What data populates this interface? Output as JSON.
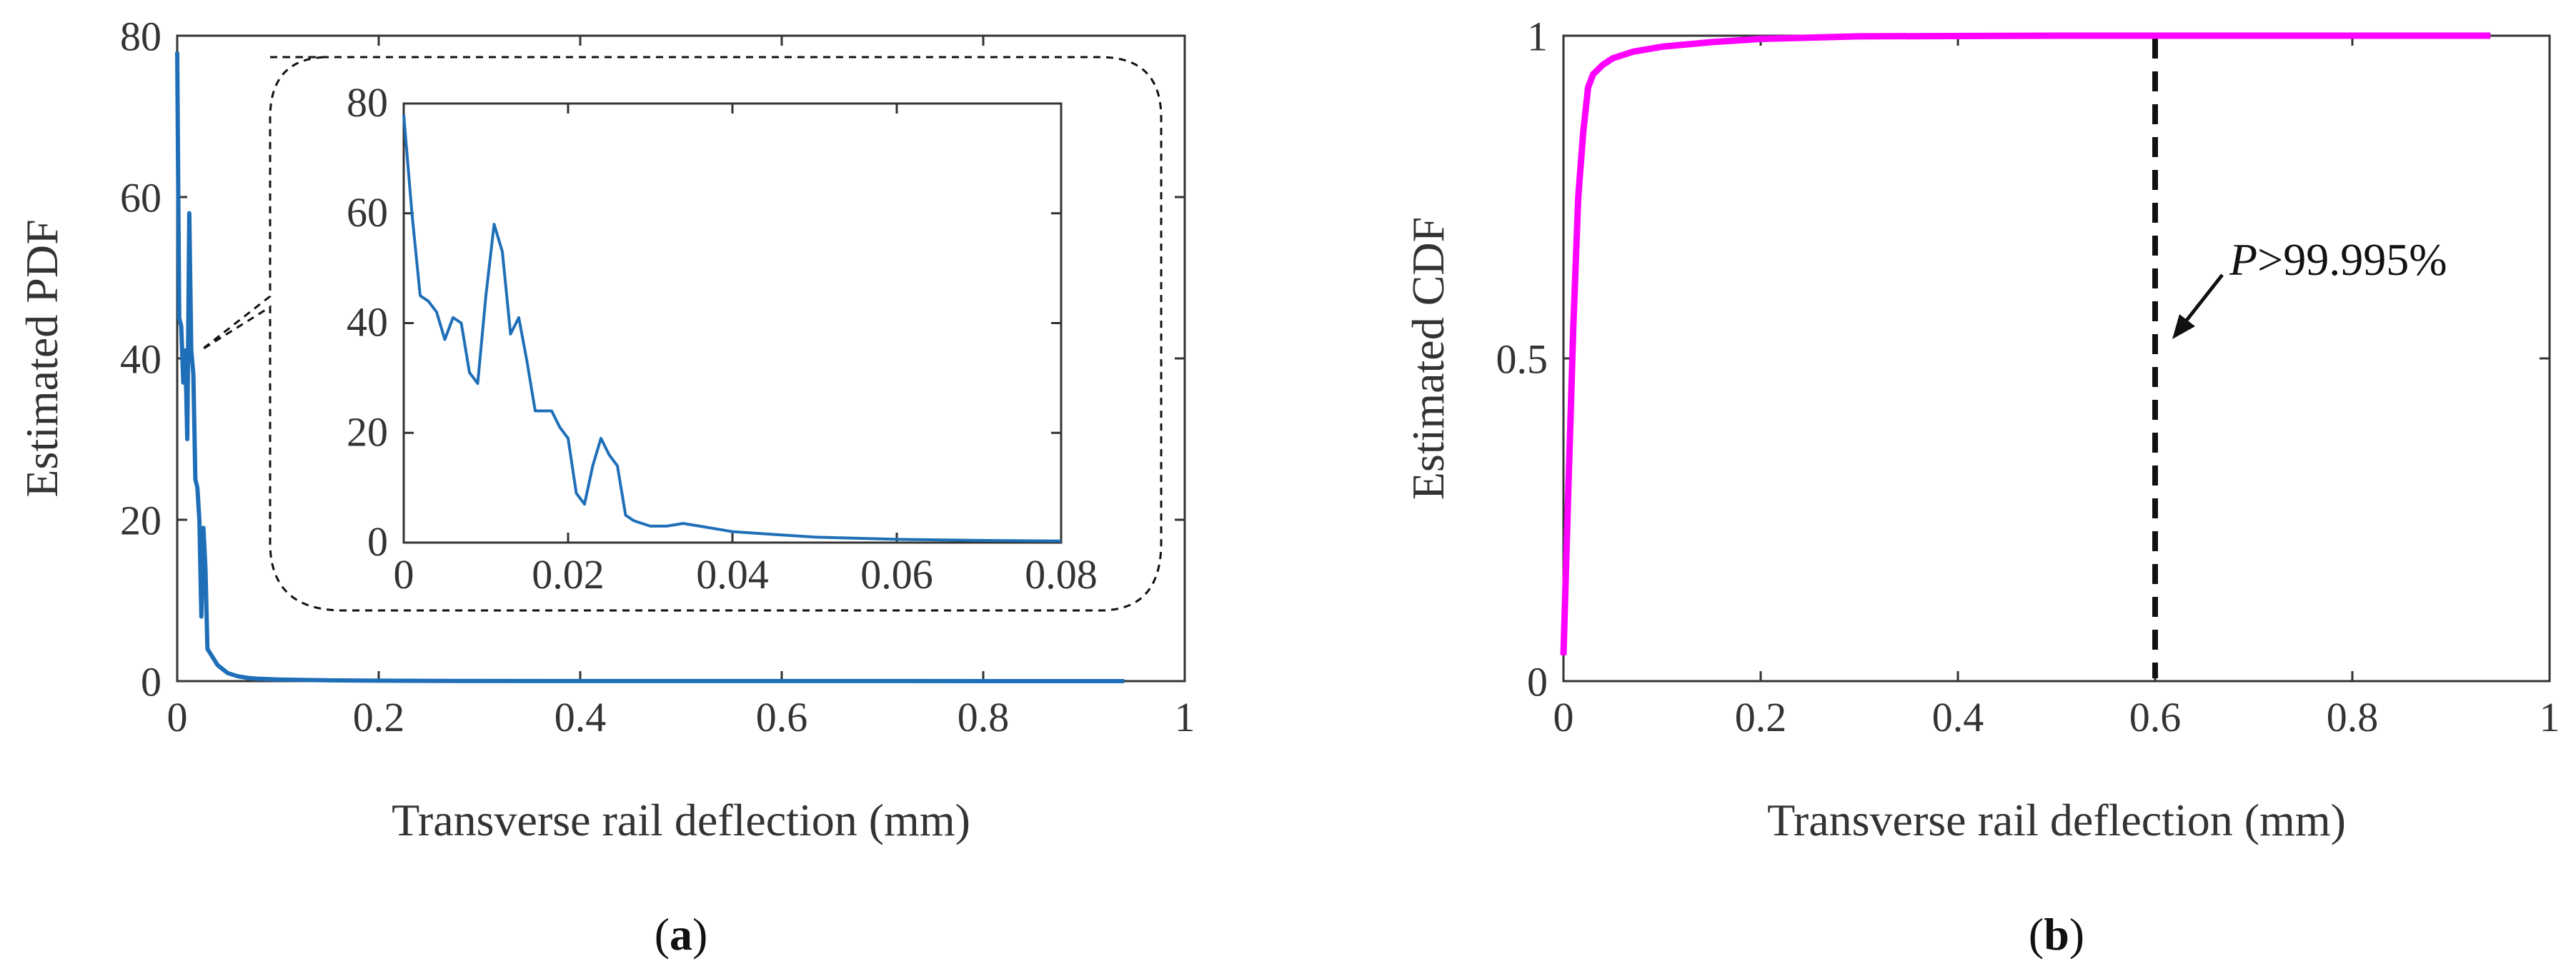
{
  "chart_data": [
    {
      "id": "a",
      "type": "line",
      "caption_letter": "a",
      "xlabel": "Transverse rail deflection (mm)",
      "ylabel": "Estimated PDF",
      "xlim": [
        0,
        1
      ],
      "ylim": [
        0,
        80
      ],
      "xticks": [
        "0",
        "0.2",
        "0.4",
        "0.6",
        "0.8",
        "1"
      ],
      "yticks": [
        "0",
        "20",
        "40",
        "60",
        "80"
      ],
      "series": [
        {
          "name": "PDF",
          "color": "#1f6fb8",
          "x": [
            0.0,
            0.002,
            0.004,
            0.006,
            0.008,
            0.01,
            0.012,
            0.014,
            0.016,
            0.018,
            0.02,
            0.022,
            0.024,
            0.026,
            0.028,
            0.03,
            0.035,
            0.04,
            0.05,
            0.06,
            0.07,
            0.08,
            0.1,
            0.15,
            0.2,
            0.3,
            0.5,
            0.7,
            0.94
          ],
          "y": [
            78,
            45,
            44,
            37,
            41,
            30,
            58,
            41,
            38,
            25,
            24,
            20,
            8,
            19,
            14,
            4,
            3,
            2,
            1,
            0.6,
            0.4,
            0.3,
            0.2,
            0.1,
            0.05,
            0.02,
            0.01,
            0.01,
            0.0
          ]
        }
      ],
      "inset": {
        "xlim": [
          0,
          0.08
        ],
        "ylim": [
          0,
          80
        ],
        "xticks": [
          "0",
          "0.02",
          "0.04",
          "0.06",
          "0.08"
        ],
        "yticks": [
          "0",
          "20",
          "40",
          "60",
          "80"
        ],
        "x": [
          0.0,
          0.001,
          0.002,
          0.003,
          0.004,
          0.005,
          0.006,
          0.007,
          0.008,
          0.009,
          0.01,
          0.011,
          0.012,
          0.013,
          0.014,
          0.015,
          0.016,
          0.017,
          0.018,
          0.019,
          0.02,
          0.021,
          0.022,
          0.023,
          0.024,
          0.025,
          0.026,
          0.027,
          0.028,
          0.029,
          0.03,
          0.032,
          0.034,
          0.036,
          0.04,
          0.045,
          0.05,
          0.06,
          0.07,
          0.08
        ],
        "y": [
          78,
          60,
          45,
          44,
          42,
          37,
          41,
          40,
          31,
          29,
          45,
          58,
          53,
          38,
          41,
          33,
          24,
          24,
          24,
          21,
          19,
          9,
          7,
          14,
          19,
          16,
          14,
          5,
          4,
          3.5,
          3,
          3,
          3.5,
          3,
          2,
          1.5,
          1,
          0.6,
          0.4,
          0.3
        ]
      }
    },
    {
      "id": "b",
      "type": "line",
      "caption_letter": "b",
      "xlabel": "Transverse rail deflection (mm)",
      "ylabel": "Estimated CDF",
      "xlim": [
        0,
        1
      ],
      "ylim": [
        0,
        1
      ],
      "xticks": [
        "0",
        "0.2",
        "0.4",
        "0.6",
        "0.8",
        "1"
      ],
      "yticks": [
        "0",
        "0.5",
        "1"
      ],
      "series": [
        {
          "name": "CDF",
          "color": "#ff00ff",
          "x": [
            0.0,
            0.005,
            0.01,
            0.015,
            0.02,
            0.025,
            0.03,
            0.04,
            0.05,
            0.07,
            0.1,
            0.15,
            0.2,
            0.3,
            0.5,
            0.7,
            0.94
          ],
          "y": [
            0.04,
            0.3,
            0.55,
            0.75,
            0.85,
            0.92,
            0.94,
            0.955,
            0.965,
            0.975,
            0.983,
            0.99,
            0.995,
            0.999,
            1.0,
            1.0,
            1.0
          ]
        }
      ],
      "threshold_x": 0.6,
      "annotation": {
        "symbol": "P",
        "text": ">99.995%"
      }
    }
  ]
}
